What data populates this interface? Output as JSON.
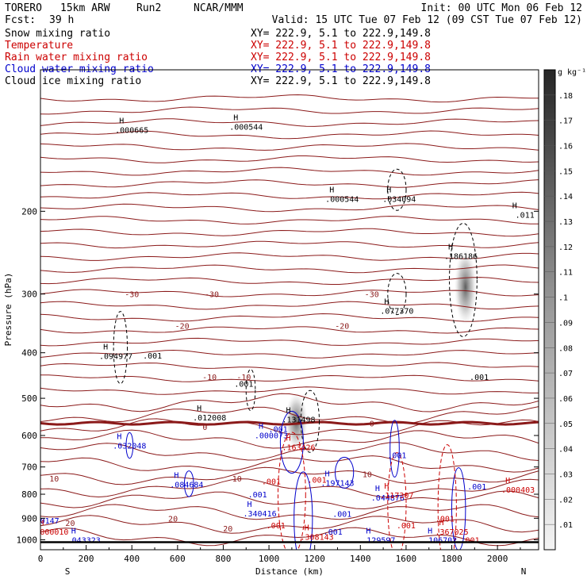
{
  "header": {
    "model": "TORERO",
    "resolution": "15km ARW",
    "run": "Run2",
    "org": "NCAR/MMM",
    "init": "Init: 00 UTC Mon 06 Feb 12",
    "fcst_label": "Fcst:",
    "fcst_value": "39 h",
    "valid": "Valid: 15 UTC Tue 07 Feb 12 (09 CST Tue 07 Feb 12)"
  },
  "legend": [
    {
      "name": "Snow mixing ratio",
      "coords": "",
      "color": "#000000"
    },
    {
      "name": "Temperature",
      "coords": "XY= 222.9,  5.1 to 222.9,149.8",
      "color": "#cc0000"
    },
    {
      "name": "Rain water mixing ratio",
      "coords": "XY= 222.9,  5.1 to 222.9,149.8",
      "color": "#cc0000"
    },
    {
      "name": "Cloud water mixing ratio",
      "coords": "XY= 222.9,  5.1 to 222.9,149.8",
      "color": "#0000cc"
    },
    {
      "name": "Cloud ice mixing ratio",
      "coords": "XY= 222.9,  5.1 to 222.9,149.8",
      "color": "#000000"
    }
  ],
  "legend_first_coords": "XY= 222.9,  5.1 to 222.9,149.8",
  "chart_data": {
    "type": "contour cross-section",
    "xlabel": "Distance (km)",
    "ylabel": "Pressure (hPa)",
    "x_ticks": [
      0,
      200,
      400,
      600,
      800,
      1000,
      1200,
      1400,
      1600,
      1800,
      2000
    ],
    "y_ticks": [
      200,
      300,
      400,
      500,
      600,
      700,
      800,
      900,
      1000
    ],
    "xlim": [
      0,
      2180
    ],
    "ylim": [
      1050,
      100
    ],
    "y_scale": "log",
    "left_end_label": "S",
    "right_end_label": "N",
    "colorbar": {
      "unit": "g kg⁻¹",
      "ticks": [
        ".01",
        ".02",
        ".03",
        ".04",
        ".05",
        ".06",
        ".07",
        ".08",
        ".09",
        ".1",
        ".11",
        ".12",
        ".13",
        ".14",
        ".15",
        ".16",
        ".17",
        ".18"
      ]
    },
    "isotherm_labels": [
      {
        "text": "-30",
        "x": 400,
        "p": 300
      },
      {
        "text": "-30",
        "x": 750,
        "p": 300
      },
      {
        "text": "-30",
        "x": 1450,
        "p": 300
      },
      {
        "text": "-20",
        "x": 620,
        "p": 350
      },
      {
        "text": "-20",
        "x": 1320,
        "p": 350
      },
      {
        "text": "-10",
        "x": 740,
        "p": 450
      },
      {
        "text": "-10",
        "x": 890,
        "p": 450
      },
      {
        "text": "0",
        "x": 720,
        "p": 575
      },
      {
        "text": "0",
        "x": 1450,
        "p": 565
      },
      {
        "text": "10",
        "x": 60,
        "p": 740
      },
      {
        "text": "10",
        "x": 860,
        "p": 740
      },
      {
        "text": "10",
        "x": 1430,
        "p": 725
      },
      {
        "text": "20",
        "x": 130,
        "p": 920
      },
      {
        "text": "20",
        "x": 580,
        "p": 900
      },
      {
        "text": "20",
        "x": 820,
        "p": 945
      }
    ],
    "maxima": [
      {
        "text": ".094977",
        "x": 330,
        "p": 400,
        "color": "#000000"
      },
      {
        "text": ".012008",
        "x": 740,
        "p": 540,
        "color": "#000000"
      },
      {
        "text": ".131498",
        "x": 1130,
        "p": 545,
        "color": "#000000"
      },
      {
        "text": ".000544",
        "x": 1320,
        "p": 185,
        "color": "#000000"
      },
      {
        "text": ".034094",
        "x": 1570,
        "p": 185,
        "color": "#000000"
      },
      {
        "text": ".077370",
        "x": 1560,
        "p": 320,
        "color": "#000000"
      },
      {
        "text": ".186186",
        "x": 1840,
        "p": 245,
        "color": "#000000"
      },
      {
        "text": ".011",
        "x": 2120,
        "p": 200,
        "color": "#000000"
      },
      {
        "text": ".000665",
        "x": 400,
        "p": 132,
        "color": "#000000"
      },
      {
        "text": ".000544",
        "x": 900,
        "p": 130,
        "color": "#000000"
      },
      {
        "text": ".032048",
        "x": 390,
        "p": 620,
        "color": "#0000cc"
      },
      {
        "text": ".084684",
        "x": 640,
        "p": 750,
        "color": "#0000cc"
      },
      {
        "text": ".000073",
        "x": 1010,
        "p": 590,
        "color": "#0000cc"
      },
      {
        "text": ".197143",
        "x": 1300,
        "p": 745,
        "color": "#0000cc"
      },
      {
        "text": ".044876",
        "x": 1520,
        "p": 800,
        "color": "#0000cc"
      },
      {
        "text": ".340416",
        "x": 960,
        "p": 865,
        "color": "#0000cc"
      },
      {
        "text": ".0147",
        "x": 30,
        "p": 895,
        "color": "#0000cc"
      },
      {
        "text": ".043323",
        "x": 190,
        "p": 985,
        "color": "#0000cc"
      },
      {
        "text": ".129597",
        "x": 1480,
        "p": 985,
        "color": "#0000cc"
      },
      {
        "text": ".106702",
        "x": 1750,
        "p": 985,
        "color": "#0000cc"
      },
      {
        "text": ".163426",
        "x": 1130,
        "p": 625,
        "color": "#cc0000"
      },
      {
        "text": ".117307",
        "x": 1560,
        "p": 790,
        "color": "#cc0000"
      },
      {
        "text": ".308143",
        "x": 1210,
        "p": 970,
        "color": "#cc0000"
      },
      {
        "text": ".000010",
        "x": 50,
        "p": 945,
        "color": "#cc0000"
      },
      {
        "text": ".367025",
        "x": 1800,
        "p": 945,
        "color": "#cc0000"
      },
      {
        "text": ".000403",
        "x": 2090,
        "p": 770,
        "color": "#cc0000"
      }
    ],
    "contour_labels": [
      {
        "text": ".001",
        "x": 490,
        "p": 405,
        "color": "#000000"
      },
      {
        "text": ".001",
        "x": 890,
        "p": 465,
        "color": "#000000"
      },
      {
        "text": ".001",
        "x": 1920,
        "p": 450,
        "color": "#000000"
      },
      {
        "text": ".001",
        "x": 1560,
        "p": 660,
        "color": "#0000cc"
      },
      {
        "text": ".001",
        "x": 1040,
        "p": 580,
        "color": "#0000cc"
      },
      {
        "text": ".001",
        "x": 950,
        "p": 800,
        "color": "#0000cc"
      },
      {
        "text": ".001",
        "x": 1320,
        "p": 880,
        "color": "#0000cc"
      },
      {
        "text": ".001",
        "x": 1280,
        "p": 960,
        "color": "#0000cc"
      },
      {
        "text": ".001",
        "x": 1910,
        "p": 770,
        "color": "#0000cc"
      },
      {
        "text": ".001",
        "x": 1010,
        "p": 750,
        "color": "#cc0000"
      },
      {
        "text": ".001",
        "x": 1210,
        "p": 745,
        "color": "#cc0000"
      },
      {
        "text": ".001",
        "x": 1030,
        "p": 930,
        "color": "#cc0000"
      },
      {
        "text": ".001",
        "x": 1600,
        "p": 930,
        "color": "#cc0000"
      },
      {
        "text": ".001",
        "x": 1770,
        "p": 900,
        "color": "#cc0000"
      },
      {
        "text": ".001",
        "x": 1880,
        "p": 1000,
        "color": "#cc0000"
      }
    ],
    "marker": "H"
  }
}
